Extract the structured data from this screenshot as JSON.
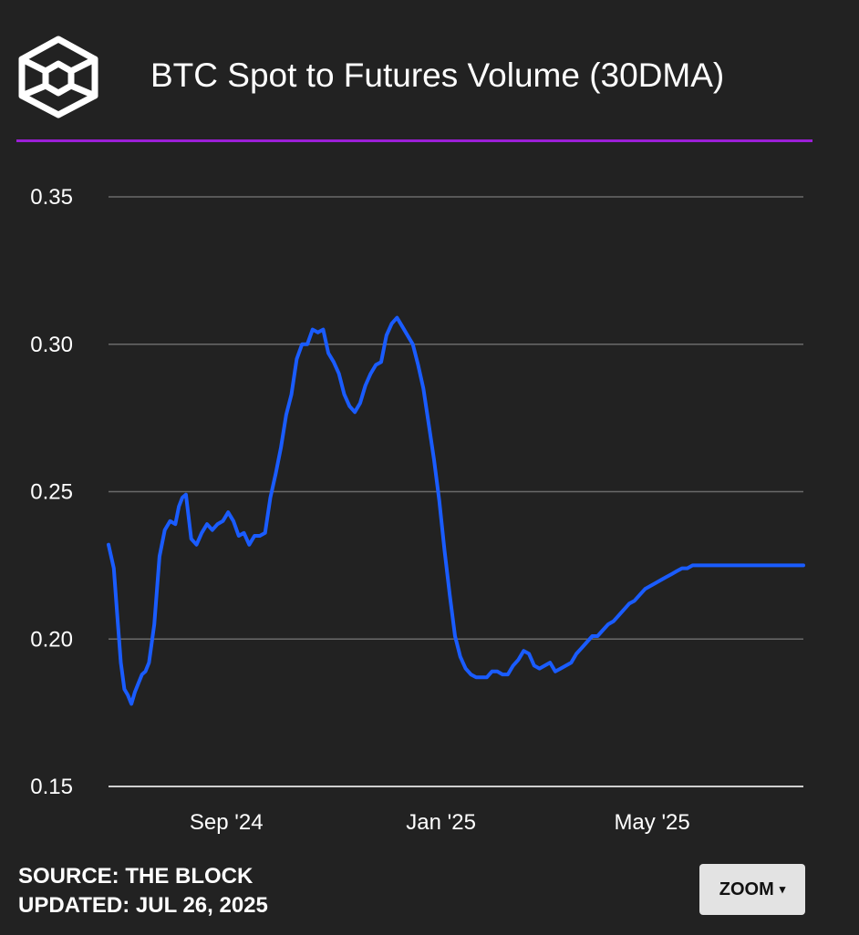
{
  "header": {
    "title": "BTC Spot to Futures Volume (30DMA)",
    "logo_icon": "the-block-cube-logo",
    "accent_color": "#9b1fd6"
  },
  "footer": {
    "source": "SOURCE: THE BLOCK",
    "updated": "UPDATED: JUL 26, 2025",
    "zoom_label": "ZOOM",
    "zoom_caret": "▾"
  },
  "chart_data": {
    "type": "line",
    "title": "BTC Spot to Futures Volume (30DMA)",
    "xlabel": "",
    "ylabel": "",
    "x_range": [
      "2024-06-26",
      "2025-07-26"
    ],
    "ylim": [
      0.15,
      0.35
    ],
    "y_ticks": [
      0.15,
      0.2,
      0.25,
      0.3,
      0.35
    ],
    "y_tick_labels": [
      "0.15",
      "0.20",
      "0.25",
      "0.30",
      "0.35"
    ],
    "x_ticks": [
      {
        "date": "2024-09-01",
        "label": "Sep '24"
      },
      {
        "date": "2025-01-01",
        "label": "Jan '25"
      },
      {
        "date": "2025-05-01",
        "label": "May '25"
      }
    ],
    "grid": true,
    "legend": "none",
    "line_color": "#1a5cff",
    "series": [
      {
        "name": "",
        "x": [
          "2024-06-26",
          "2024-06-29",
          "2024-07-01",
          "2024-07-03",
          "2024-07-05",
          "2024-07-07",
          "2024-07-09",
          "2024-07-11",
          "2024-07-13",
          "2024-07-15",
          "2024-07-17",
          "2024-07-19",
          "2024-07-22",
          "2024-07-25",
          "2024-07-28",
          "2024-07-31",
          "2024-08-03",
          "2024-08-05",
          "2024-08-07",
          "2024-08-09",
          "2024-08-12",
          "2024-08-15",
          "2024-08-18",
          "2024-08-21",
          "2024-08-24",
          "2024-08-27",
          "2024-08-30",
          "2024-09-02",
          "2024-09-05",
          "2024-09-08",
          "2024-09-11",
          "2024-09-14",
          "2024-09-17",
          "2024-09-20",
          "2024-09-23",
          "2024-09-26",
          "2024-09-29",
          "2024-10-02",
          "2024-10-05",
          "2024-10-08",
          "2024-10-11",
          "2024-10-14",
          "2024-10-17",
          "2024-10-20",
          "2024-10-23",
          "2024-10-26",
          "2024-10-29",
          "2024-11-01",
          "2024-11-04",
          "2024-11-07",
          "2024-11-10",
          "2024-11-13",
          "2024-11-16",
          "2024-11-19",
          "2024-11-22",
          "2024-11-25",
          "2024-11-28",
          "2024-12-01",
          "2024-12-04",
          "2024-12-07",
          "2024-12-10",
          "2024-12-13",
          "2024-12-16",
          "2024-12-19",
          "2024-12-22",
          "2024-12-25",
          "2024-12-28",
          "2024-12-31",
          "2025-01-03",
          "2025-01-06",
          "2025-01-09",
          "2025-01-12",
          "2025-01-15",
          "2025-01-18",
          "2025-01-21",
          "2025-01-24",
          "2025-01-27",
          "2025-01-30",
          "2025-02-02",
          "2025-02-05",
          "2025-02-08",
          "2025-02-11",
          "2025-02-14",
          "2025-02-17",
          "2025-02-20",
          "2025-02-23",
          "2025-02-26",
          "2025-03-01",
          "2025-03-04",
          "2025-03-07",
          "2025-03-10",
          "2025-03-13",
          "2025-03-16",
          "2025-03-19",
          "2025-03-22",
          "2025-03-25",
          "2025-03-28",
          "2025-03-31",
          "2025-04-03",
          "2025-04-06",
          "2025-04-09",
          "2025-04-12",
          "2025-04-15",
          "2025-04-18",
          "2025-04-21",
          "2025-04-24",
          "2025-04-27",
          "2025-04-30",
          "2025-05-03",
          "2025-05-06",
          "2025-05-09",
          "2025-05-12",
          "2025-05-15",
          "2025-05-18",
          "2025-05-21",
          "2025-05-24",
          "2025-05-27",
          "2025-05-30",
          "2025-06-02",
          "2025-06-05",
          "2025-06-08",
          "2025-06-11",
          "2025-06-14",
          "2025-06-17",
          "2025-06-20",
          "2025-06-23",
          "2025-06-26",
          "2025-06-29",
          "2025-07-02",
          "2025-07-05",
          "2025-07-08",
          "2025-07-11",
          "2025-07-14",
          "2025-07-17",
          "2025-07-20",
          "2025-07-23",
          "2025-07-26"
        ],
        "values": [
          0.232,
          0.224,
          0.208,
          0.192,
          0.183,
          0.181,
          0.178,
          0.182,
          0.185,
          0.188,
          0.189,
          0.192,
          0.205,
          0.228,
          0.237,
          0.24,
          0.239,
          0.245,
          0.248,
          0.249,
          0.234,
          0.232,
          0.236,
          0.239,
          0.237,
          0.239,
          0.24,
          0.243,
          0.24,
          0.235,
          0.236,
          0.232,
          0.235,
          0.235,
          0.236,
          0.248,
          0.256,
          0.265,
          0.276,
          0.283,
          0.295,
          0.3,
          0.3,
          0.305,
          0.304,
          0.305,
          0.297,
          0.294,
          0.29,
          0.283,
          0.279,
          0.277,
          0.28,
          0.286,
          0.29,
          0.293,
          0.294,
          0.303,
          0.307,
          0.309,
          0.306,
          0.303,
          0.3,
          0.293,
          0.285,
          0.273,
          0.261,
          0.247,
          0.23,
          0.215,
          0.201,
          0.194,
          0.19,
          0.188,
          0.187,
          0.187,
          0.187,
          0.189,
          0.189,
          0.188,
          0.188,
          0.191,
          0.193,
          0.196,
          0.195,
          0.191,
          0.19,
          0.191,
          0.192,
          0.189,
          0.19,
          0.191,
          0.192,
          0.195,
          0.197,
          0.199,
          0.201,
          0.201,
          0.203,
          0.205,
          0.206,
          0.208,
          0.21,
          0.212,
          0.213,
          0.215,
          0.217,
          0.218,
          0.219,
          0.22,
          0.221,
          0.222,
          0.223,
          0.224,
          0.224,
          0.225,
          0.225,
          0.225,
          0.225,
          0.225,
          0.225,
          0.225,
          0.225,
          0.225,
          0.225,
          0.225,
          0.225,
          0.225,
          0.225,
          0.225,
          0.225,
          0.225,
          0.225,
          0.225,
          0.225,
          0.225,
          0.225
        ]
      }
    ]
  }
}
